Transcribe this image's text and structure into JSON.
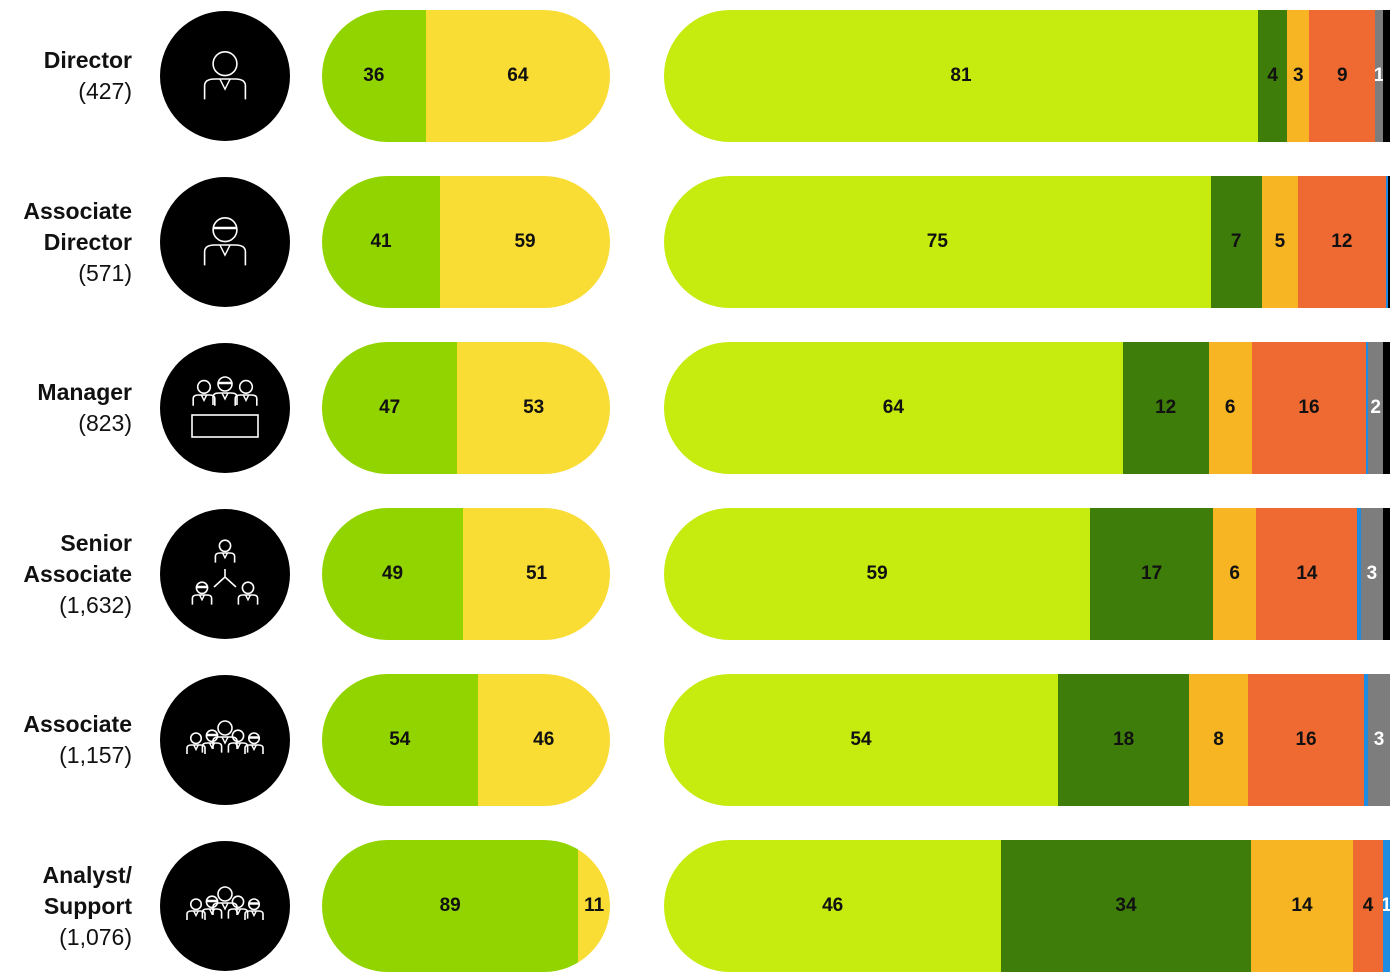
{
  "colors": {
    "pill_a": [
      "#92d400",
      "#f9dc34"
    ],
    "pill_b": [
      "#c5eb0f",
      "#3e7d0a",
      "#f7b524",
      "#ef6a33",
      "#1e8ce0",
      "#7d7d7d",
      "#000000"
    ]
  },
  "chart_data": {
    "type": "bar",
    "orientation": "horizontal",
    "stacked": true,
    "categories": [
      "Director",
      "Associate Director",
      "Manager",
      "Senior Associate",
      "Associate",
      "Analyst/ Support"
    ],
    "category_counts": [
      "(427)",
      "(571)",
      "(823)",
      "(1,632)",
      "(1,157)",
      "(1,076)"
    ],
    "icons": [
      "single-woman-icon",
      "man-with-glasses-icon",
      "meeting-table-icon",
      "hierarchy-icon",
      "team-of-four-icon",
      "team-of-four-icon"
    ],
    "charts": [
      {
        "name": "",
        "series": [
          {
            "name": "",
            "values": [
              36,
              41,
              47,
              49,
              54,
              89
            ]
          },
          {
            "name": "",
            "values": [
              64,
              59,
              53,
              51,
              46,
              11
            ]
          }
        ]
      },
      {
        "name": "",
        "series": [
          {
            "name": "",
            "values": [
              81,
              75,
              64,
              59,
              54,
              46
            ]
          },
          {
            "name": "",
            "values": [
              4,
              7,
              12,
              17,
              18,
              34
            ]
          },
          {
            "name": "",
            "values": [
              3,
              5,
              6,
              6,
              8,
              14
            ]
          },
          {
            "name": "",
            "values": [
              9,
              12,
              16,
              14,
              16,
              4
            ]
          },
          {
            "name": "",
            "values": [
              0,
              0.3,
              0.3,
              0.5,
              0.5,
              1
            ]
          },
          {
            "name": "",
            "values": [
              1,
              0,
              2,
              3,
              3,
              0
            ]
          },
          {
            "name": "",
            "values": [
              1,
              0.3,
              1,
              1,
              0,
              0
            ]
          }
        ]
      }
    ],
    "labels": [
      {
        "a": [
          "36",
          "64"
        ],
        "b": [
          "81",
          "4",
          "3",
          "9",
          "",
          "1",
          ""
        ]
      },
      {
        "a": [
          "41",
          "59"
        ],
        "b": [
          "75",
          "7",
          "5",
          "12",
          "",
          "",
          ""
        ]
      },
      {
        "a": [
          "47",
          "53"
        ],
        "b": [
          "64",
          "12",
          "6",
          "16",
          "",
          "2",
          ""
        ]
      },
      {
        "a": [
          "49",
          "51"
        ],
        "b": [
          "59",
          "17",
          "6",
          "14",
          "",
          "3",
          ""
        ]
      },
      {
        "a": [
          "54",
          "46"
        ],
        "b": [
          "54",
          "18",
          "8",
          "16",
          "",
          "3",
          ""
        ]
      },
      {
        "a": [
          "89",
          "11"
        ],
        "b": [
          "46",
          "34",
          "14",
          "4",
          "1",
          "",
          ""
        ]
      }
    ],
    "title": "",
    "xlabel": "",
    "ylabel": "",
    "grid": false,
    "legend": "none"
  }
}
